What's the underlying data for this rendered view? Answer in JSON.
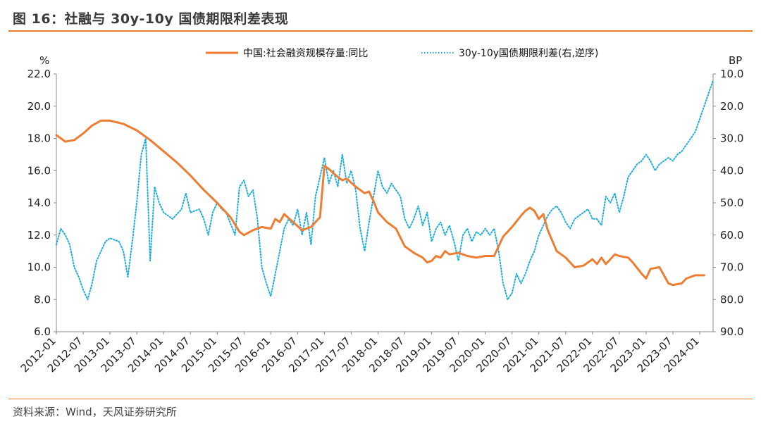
{
  "header": {
    "title": "图 16：社融与 30y-10y 国债期限利差表现"
  },
  "footer": {
    "source": "资料来源：Wind，天风证券研究所"
  },
  "colors": {
    "accent": "#e87d2f",
    "orange_series": "#ED7D31",
    "blue_series": "#1EAEDB"
  },
  "chart_data": {
    "type": "line",
    "left_unit": "%",
    "right_unit": "BP",
    "left_axis": {
      "min": 6,
      "max": 22,
      "ticks": [
        "6.0",
        "8.0",
        "10.0",
        "12.0",
        "14.0",
        "16.0",
        "18.0",
        "20.0",
        "22.0"
      ]
    },
    "right_axis": {
      "min": 10,
      "max": 90,
      "reversed": true,
      "ticks": [
        "10.0",
        "20.0",
        "30.0",
        "40.0",
        "50.0",
        "60.0",
        "70.0",
        "80.0",
        "90.0"
      ]
    },
    "x_range": [
      "2012-01",
      "2024-04"
    ],
    "x_ticks": [
      "2012-01",
      "2012-07",
      "2013-01",
      "2013-07",
      "2014-01",
      "2014-07",
      "2015-01",
      "2015-07",
      "2016-01",
      "2016-07",
      "2017-01",
      "2017-07",
      "2018-01",
      "2018-07",
      "2019-01",
      "2019-07",
      "2020-01",
      "2020-07",
      "2021-01",
      "2021-07",
      "2022-01",
      "2022-07",
      "2023-01",
      "2023-07",
      "2024-01"
    ],
    "grid": false,
    "legend_position": "top",
    "series": [
      {
        "name": "中国:社会融资规模存量:同比",
        "axis": "left",
        "style": "solid",
        "points": [
          [
            "2012-01",
            18.2
          ],
          [
            "2012-03",
            17.8
          ],
          [
            "2012-05",
            17.9
          ],
          [
            "2012-07",
            18.3
          ],
          [
            "2012-09",
            18.8
          ],
          [
            "2012-11",
            19.1
          ],
          [
            "2013-01",
            19.1
          ],
          [
            "2013-04",
            18.9
          ],
          [
            "2013-07",
            18.5
          ],
          [
            "2013-10",
            17.9
          ],
          [
            "2014-01",
            17.2
          ],
          [
            "2014-04",
            16.5
          ],
          [
            "2014-07",
            15.7
          ],
          [
            "2014-10",
            14.8
          ],
          [
            "2015-01",
            14.0
          ],
          [
            "2015-04",
            13.1
          ],
          [
            "2015-06",
            12.2
          ],
          [
            "2015-07",
            12.0
          ],
          [
            "2015-09",
            12.3
          ],
          [
            "2015-11",
            12.5
          ],
          [
            "2016-01",
            12.4
          ],
          [
            "2016-02",
            13.0
          ],
          [
            "2016-03",
            12.8
          ],
          [
            "2016-04",
            13.3
          ],
          [
            "2016-06",
            12.8
          ],
          [
            "2016-08",
            12.3
          ],
          [
            "2016-10",
            12.5
          ],
          [
            "2016-11",
            12.8
          ],
          [
            "2016-12",
            13.1
          ],
          [
            "2017-01",
            16.3
          ],
          [
            "2017-02",
            16.1
          ],
          [
            "2017-04",
            15.6
          ],
          [
            "2017-05",
            15.4
          ],
          [
            "2017-06",
            15.5
          ],
          [
            "2017-08",
            15.0
          ],
          [
            "2017-10",
            14.6
          ],
          [
            "2017-11",
            14.7
          ],
          [
            "2017-12",
            14.1
          ],
          [
            "2018-01",
            13.4
          ],
          [
            "2018-03",
            12.8
          ],
          [
            "2018-05",
            12.4
          ],
          [
            "2018-07",
            11.3
          ],
          [
            "2018-09",
            10.9
          ],
          [
            "2018-11",
            10.6
          ],
          [
            "2018-12",
            10.3
          ],
          [
            "2019-01",
            10.4
          ],
          [
            "2019-02",
            10.7
          ],
          [
            "2019-03",
            10.6
          ],
          [
            "2019-04",
            11.0
          ],
          [
            "2019-05",
            10.8
          ],
          [
            "2019-07",
            10.9
          ],
          [
            "2019-09",
            10.7
          ],
          [
            "2019-11",
            10.6
          ],
          [
            "2020-01",
            10.7
          ],
          [
            "2020-03",
            10.7
          ],
          [
            "2020-05",
            11.9
          ],
          [
            "2020-07",
            12.5
          ],
          [
            "2020-09",
            13.2
          ],
          [
            "2020-10",
            13.5
          ],
          [
            "2020-11",
            13.7
          ],
          [
            "2020-12",
            13.5
          ],
          [
            "2021-01",
            13.0
          ],
          [
            "2021-02",
            13.3
          ],
          [
            "2021-03",
            12.3
          ],
          [
            "2021-05",
            11.0
          ],
          [
            "2021-07",
            10.6
          ],
          [
            "2021-09",
            10.0
          ],
          [
            "2021-11",
            10.1
          ],
          [
            "2022-01",
            10.5
          ],
          [
            "2022-02",
            10.2
          ],
          [
            "2022-03",
            10.6
          ],
          [
            "2022-04",
            10.2
          ],
          [
            "2022-05",
            10.5
          ],
          [
            "2022-06",
            10.8
          ],
          [
            "2022-07",
            10.7
          ],
          [
            "2022-09",
            10.6
          ],
          [
            "2022-10",
            10.3
          ],
          [
            "2022-12",
            9.6
          ],
          [
            "2023-01",
            9.3
          ],
          [
            "2023-02",
            9.9
          ],
          [
            "2023-04",
            10.0
          ],
          [
            "2023-05",
            9.5
          ],
          [
            "2023-06",
            9.0
          ],
          [
            "2023-07",
            8.9
          ],
          [
            "2023-09",
            9.0
          ],
          [
            "2023-10",
            9.3
          ],
          [
            "2023-12",
            9.5
          ],
          [
            "2024-02",
            9.5
          ]
        ]
      },
      {
        "name": "30y-10y国债期限利差(右,逆序)",
        "axis": "right",
        "style": "dotted",
        "points": [
          [
            "2012-01",
            63
          ],
          [
            "2012-02",
            58
          ],
          [
            "2012-03",
            60
          ],
          [
            "2012-04",
            63
          ],
          [
            "2012-05",
            70
          ],
          [
            "2012-06",
            73
          ],
          [
            "2012-07",
            77
          ],
          [
            "2012-08",
            80
          ],
          [
            "2012-09",
            75
          ],
          [
            "2012-10",
            68
          ],
          [
            "2012-11",
            65
          ],
          [
            "2012-12",
            62
          ],
          [
            "2013-01",
            61
          ],
          [
            "2013-03",
            62
          ],
          [
            "2013-04",
            65
          ],
          [
            "2013-05",
            73
          ],
          [
            "2013-06",
            62
          ],
          [
            "2013-07",
            50
          ],
          [
            "2013-08",
            35
          ],
          [
            "2013-09",
            30
          ],
          [
            "2013-10",
            68
          ],
          [
            "2013-11",
            45
          ],
          [
            "2013-12",
            50
          ],
          [
            "2014-01",
            53
          ],
          [
            "2014-03",
            55
          ],
          [
            "2014-05",
            52
          ],
          [
            "2014-06",
            47
          ],
          [
            "2014-07",
            53
          ],
          [
            "2014-09",
            52
          ],
          [
            "2014-10",
            55
          ],
          [
            "2014-11",
            60
          ],
          [
            "2014-12",
            53
          ],
          [
            "2015-01",
            50
          ],
          [
            "2015-02",
            52
          ],
          [
            "2015-03",
            53
          ],
          [
            "2015-05",
            60
          ],
          [
            "2015-06",
            45
          ],
          [
            "2015-07",
            43
          ],
          [
            "2015-08",
            48
          ],
          [
            "2015-09",
            46
          ],
          [
            "2015-10",
            55
          ],
          [
            "2015-11",
            70
          ],
          [
            "2015-12",
            75
          ],
          [
            "2016-01",
            79
          ],
          [
            "2016-02",
            72
          ],
          [
            "2016-03",
            65
          ],
          [
            "2016-04",
            58
          ],
          [
            "2016-05",
            55
          ],
          [
            "2016-06",
            57
          ],
          [
            "2016-07",
            52
          ],
          [
            "2016-08",
            60
          ],
          [
            "2016-09",
            53
          ],
          [
            "2016-10",
            63
          ],
          [
            "2016-11",
            48
          ],
          [
            "2016-12",
            42
          ],
          [
            "2017-01",
            36
          ],
          [
            "2017-02",
            44
          ],
          [
            "2017-03",
            40
          ],
          [
            "2017-04",
            45
          ],
          [
            "2017-05",
            35
          ],
          [
            "2017-06",
            44
          ],
          [
            "2017-07",
            40
          ],
          [
            "2017-08",
            46
          ],
          [
            "2017-09",
            58
          ],
          [
            "2017-10",
            65
          ],
          [
            "2017-11",
            56
          ],
          [
            "2017-12",
            48
          ],
          [
            "2018-01",
            40
          ],
          [
            "2018-02",
            45
          ],
          [
            "2018-03",
            47
          ],
          [
            "2018-04",
            44
          ],
          [
            "2018-05",
            46
          ],
          [
            "2018-06",
            48
          ],
          [
            "2018-07",
            55
          ],
          [
            "2018-08",
            58
          ],
          [
            "2018-09",
            55
          ],
          [
            "2018-10",
            51
          ],
          [
            "2018-11",
            57
          ],
          [
            "2018-12",
            53
          ],
          [
            "2019-01",
            62
          ],
          [
            "2019-02",
            58
          ],
          [
            "2019-03",
            56
          ],
          [
            "2019-04",
            60
          ],
          [
            "2019-05",
            57
          ],
          [
            "2019-06",
            62
          ],
          [
            "2019-07",
            68
          ],
          [
            "2019-08",
            60
          ],
          [
            "2019-09",
            58
          ],
          [
            "2019-10",
            62
          ],
          [
            "2019-11",
            59
          ],
          [
            "2019-12",
            60
          ],
          [
            "2020-01",
            58
          ],
          [
            "2020-02",
            60
          ],
          [
            "2020-03",
            58
          ],
          [
            "2020-04",
            65
          ],
          [
            "2020-05",
            75
          ],
          [
            "2020-06",
            80
          ],
          [
            "2020-07",
            78
          ],
          [
            "2020-08",
            72
          ],
          [
            "2020-09",
            75
          ],
          [
            "2020-10",
            72
          ],
          [
            "2020-11",
            68
          ],
          [
            "2020-12",
            65
          ],
          [
            "2021-01",
            60
          ],
          [
            "2021-02",
            57
          ],
          [
            "2021-03",
            54
          ],
          [
            "2021-04",
            52
          ],
          [
            "2021-05",
            51
          ],
          [
            "2021-06",
            53
          ],
          [
            "2021-07",
            56
          ],
          [
            "2021-08",
            58
          ],
          [
            "2021-09",
            55
          ],
          [
            "2021-10",
            54
          ],
          [
            "2021-11",
            53
          ],
          [
            "2021-12",
            52
          ],
          [
            "2022-01",
            55
          ],
          [
            "2022-02",
            55
          ],
          [
            "2022-03",
            57
          ],
          [
            "2022-04",
            48
          ],
          [
            "2022-05",
            50
          ],
          [
            "2022-06",
            47
          ],
          [
            "2022-07",
            53
          ],
          [
            "2022-08",
            48
          ],
          [
            "2022-09",
            42
          ],
          [
            "2022-10",
            40
          ],
          [
            "2022-11",
            38
          ],
          [
            "2022-12",
            37
          ],
          [
            "2023-01",
            35
          ],
          [
            "2023-02",
            37
          ],
          [
            "2023-03",
            40
          ],
          [
            "2023-04",
            38
          ],
          [
            "2023-05",
            37
          ],
          [
            "2023-06",
            36
          ],
          [
            "2023-07",
            37
          ],
          [
            "2023-08",
            35
          ],
          [
            "2023-09",
            34
          ],
          [
            "2023-10",
            32
          ],
          [
            "2023-11",
            30
          ],
          [
            "2023-12",
            28
          ],
          [
            "2024-01",
            24
          ],
          [
            "2024-02",
            20
          ],
          [
            "2024-03",
            16
          ],
          [
            "2024-04",
            12
          ]
        ]
      }
    ]
  }
}
